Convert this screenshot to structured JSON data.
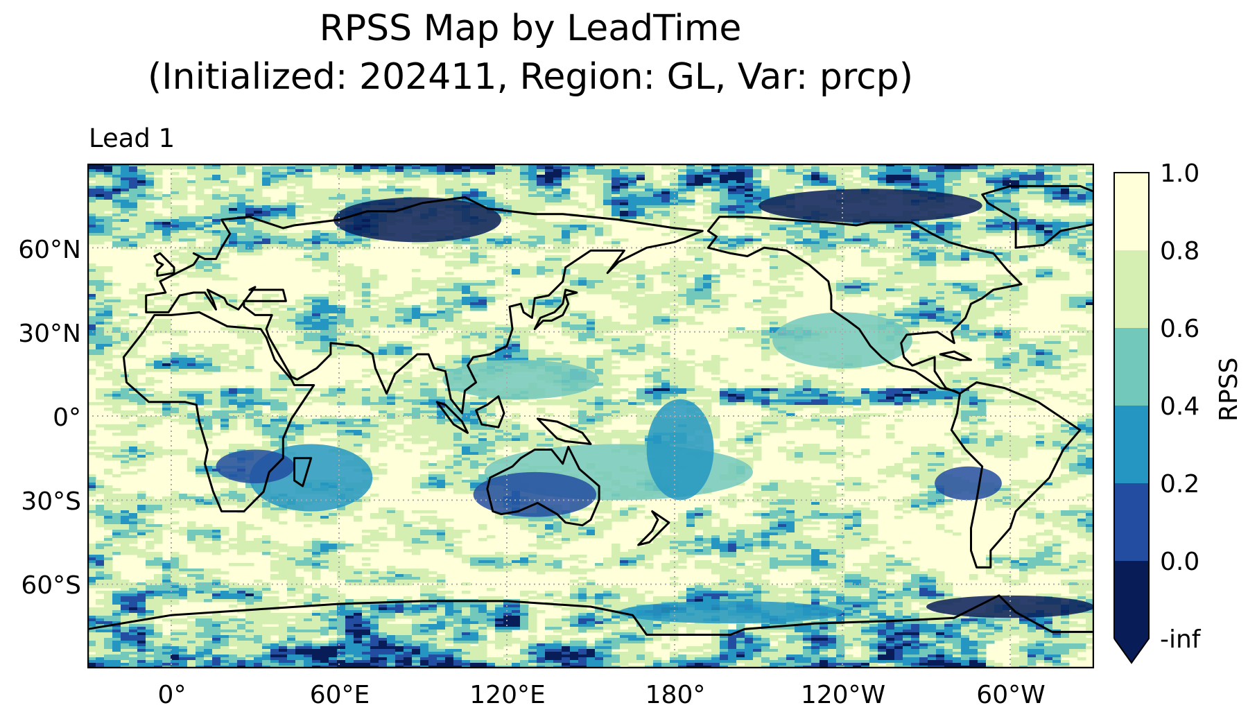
{
  "title_line1": "RPSS Map by LeadTime",
  "title_line2": "(Initialized: 202411, Region: GL, Var: prcp)",
  "panel_title": "Lead 1",
  "lat_labels": [
    "60°N",
    "30°N",
    "0°",
    "30°S",
    "60°S"
  ],
  "lon_labels": [
    "0°",
    "60°E",
    "120°E",
    "180°",
    "120°W",
    "60°W"
  ],
  "colorbar": {
    "label": "RPSS",
    "ticks": [
      "1.0",
      "0.8",
      "0.6",
      "0.4",
      "0.2",
      "0.0",
      "-inf"
    ],
    "levels": [
      {
        "range": "0.8–1.0",
        "color": "#ffffd9"
      },
      {
        "range": "0.6–0.8",
        "color": "#d5efb3"
      },
      {
        "range": "0.4–0.6",
        "color": "#73c8bc"
      },
      {
        "range": "0.2–0.4",
        "color": "#2496c1"
      },
      {
        "range": "0.0–0.2",
        "color": "#234da0"
      },
      {
        "range": "-inf–0.0",
        "color": "#081d58"
      }
    ]
  },
  "chart_data": {
    "type": "heatmap",
    "title": "RPSS Map by LeadTime\n(Initialized: 202411, Region: GL, Var: prcp)",
    "subplot_title": "Lead 1",
    "projection": "PlateCarree, central longitude 180",
    "xticks": [
      "0°",
      "60°E",
      "120°E",
      "180°",
      "120°W",
      "60°W"
    ],
    "yticks": [
      "60°N",
      "30°N",
      "0°",
      "30°S",
      "60°S"
    ],
    "lon_range": [
      -30,
      330
    ],
    "lat_range": [
      -90,
      90
    ],
    "colorbar_label": "RPSS",
    "colorbar_ticks": [
      "1.0",
      "0.8",
      "0.6",
      "0.4",
      "0.2",
      "0.0",
      "-inf"
    ],
    "colormap": "YlGnBu",
    "grid": true,
    "coastlines": true
  }
}
